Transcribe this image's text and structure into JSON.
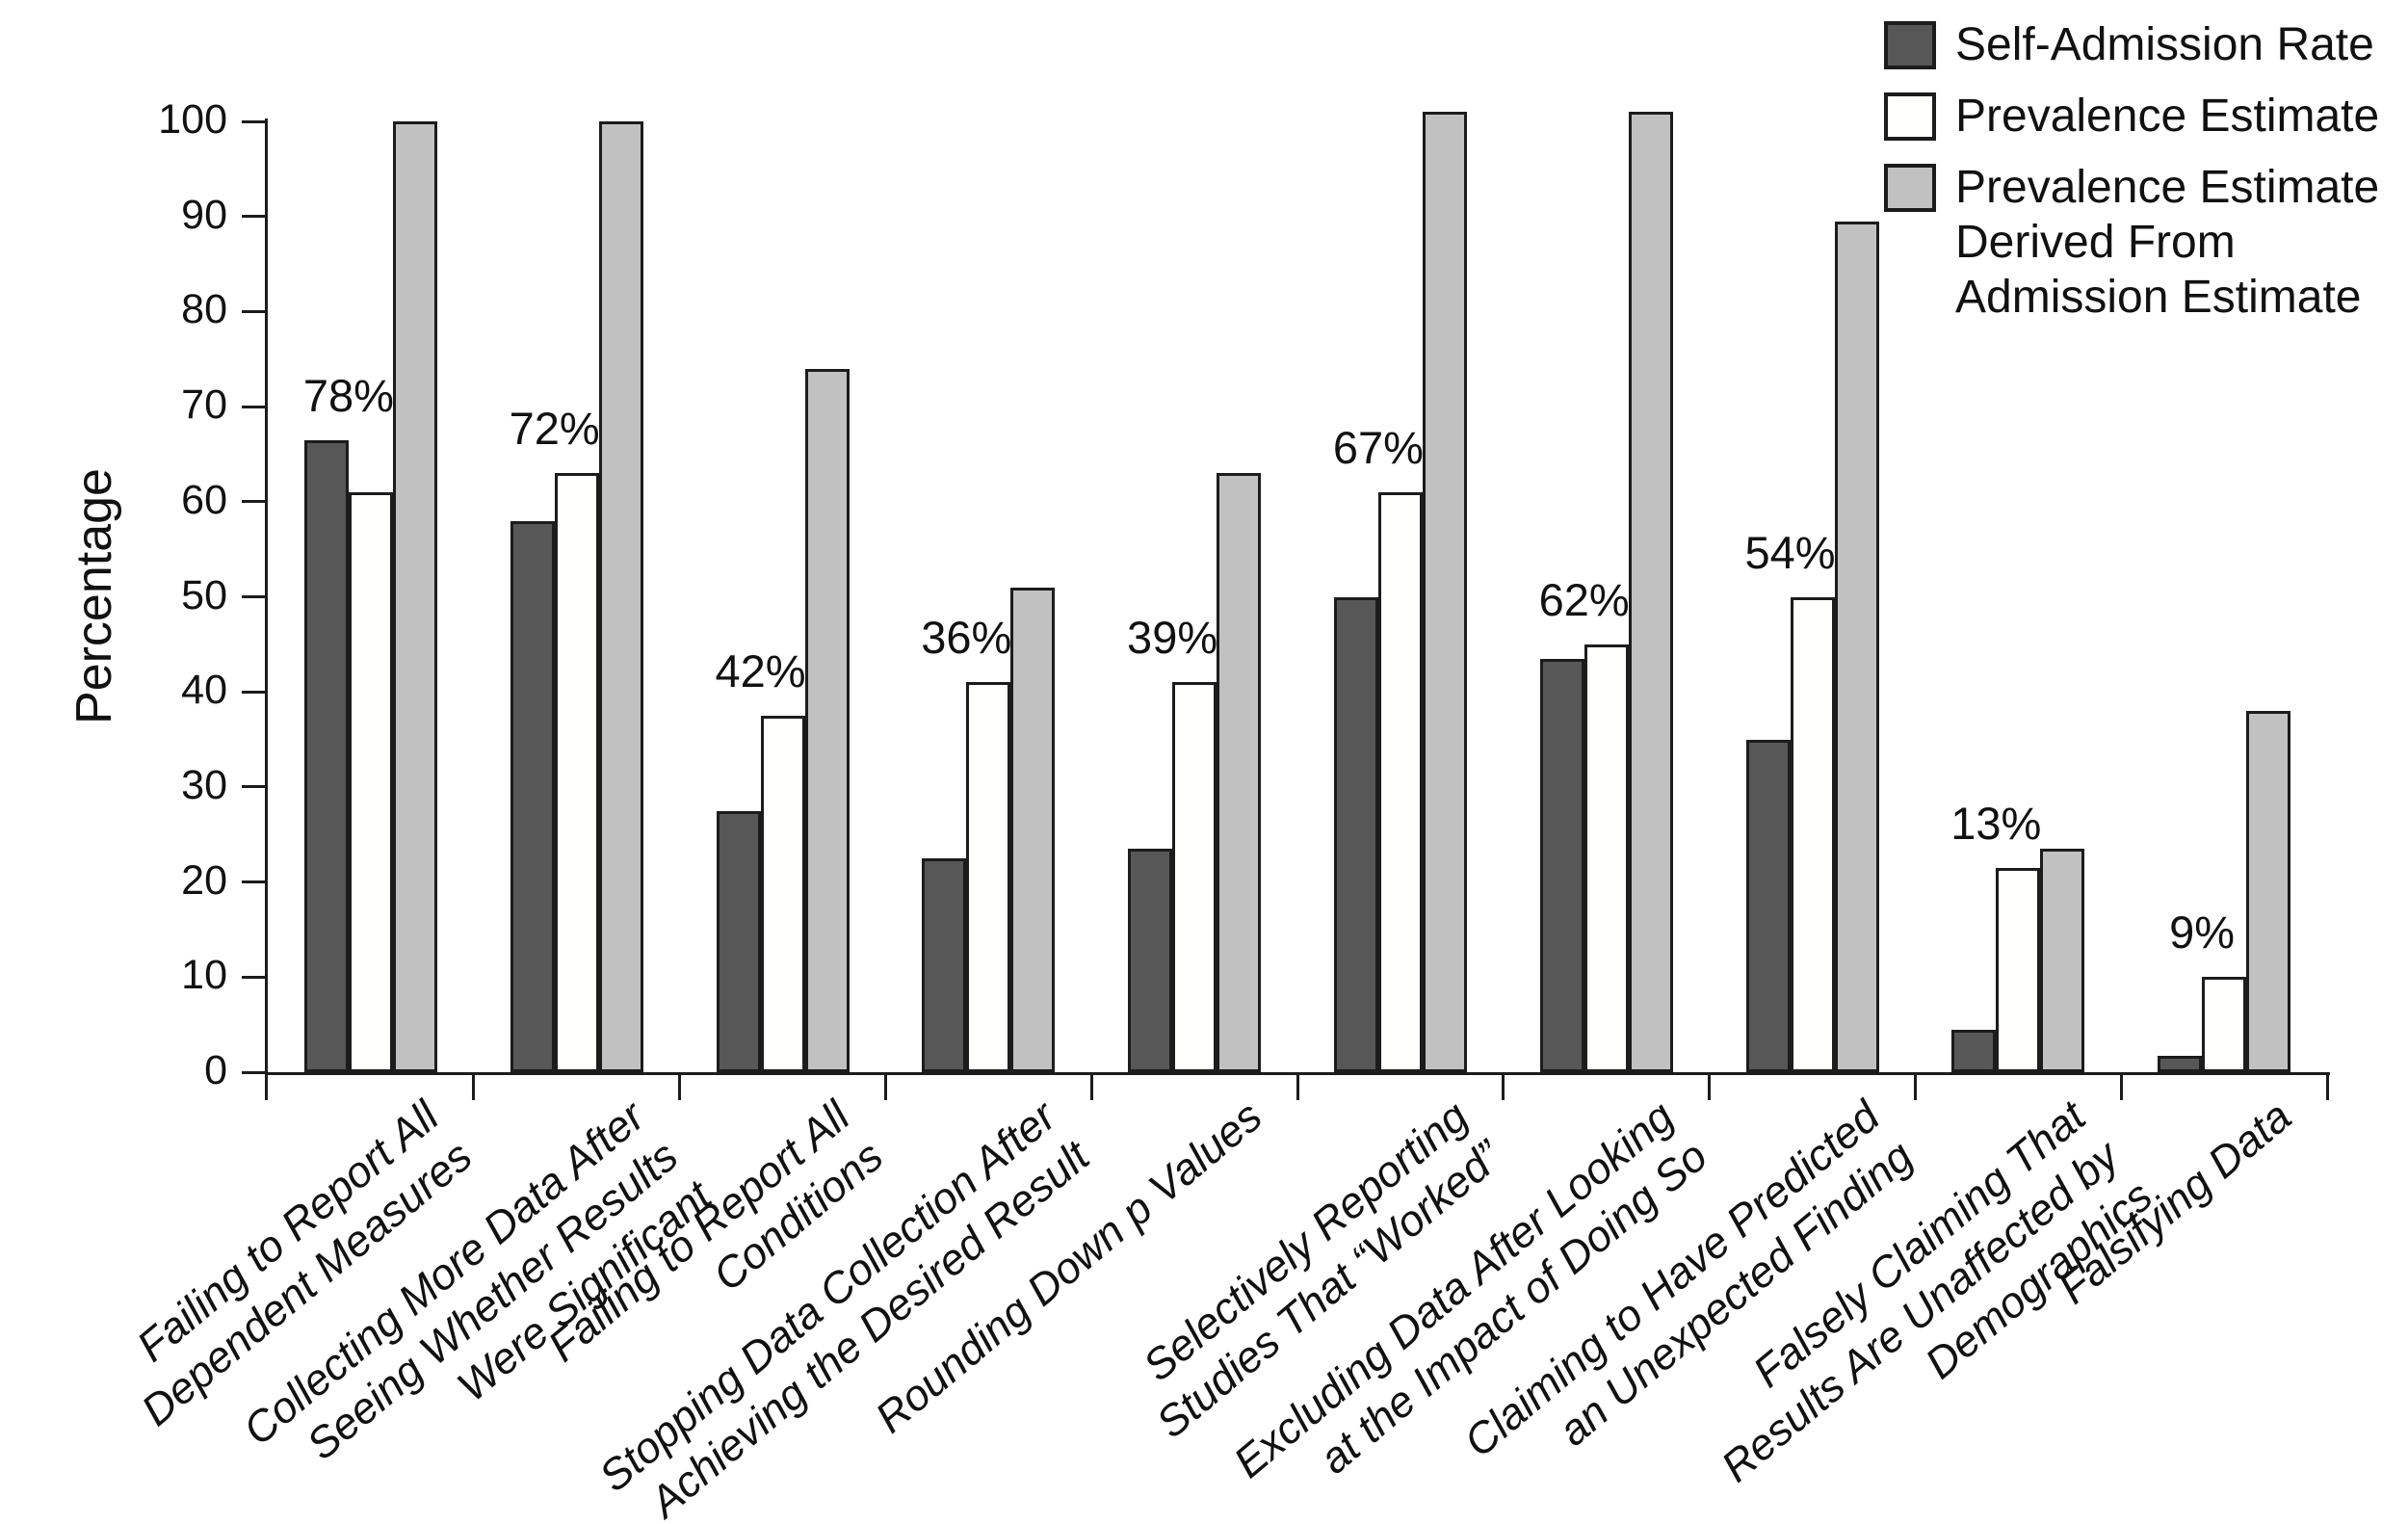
{
  "figure": {
    "ylabel": "Percentage",
    "legend": [
      {
        "label": "Self-Admission Rate",
        "color": "#575757"
      },
      {
        "label": "Prevalence Estimate",
        "color": "#FFFFFE"
      },
      {
        "label": "Prevalence Estimate\nDerived From\nAdmission Estimate",
        "color": "#C1C1C1"
      }
    ]
  },
  "chart_data": {
    "type": "bar",
    "title": "",
    "xlabel": "",
    "ylabel": "Percentage",
    "ylim": [
      0,
      100
    ],
    "yticks": [
      0,
      10,
      20,
      30,
      40,
      50,
      60,
      70,
      80,
      90,
      100
    ],
    "grid": false,
    "legend_position": "top-right",
    "categories": [
      "Failing to Report All\nDependent Measures",
      "Collecting More Data After\nSeeing Whether Results\nWere Significant",
      "Failing to Report All\nConditions",
      "Stopping Data Collection After\nAchieving the Desired Result",
      "Rounding Down p Values",
      "Selectively Reporting\nStudies That “Worked”",
      "Excluding Data After Looking\nat the Impact of Doing So",
      "Claiming to Have Predicted\nan Unexpected Finding",
      "Falsely Claiming That\nResults Are Unaffected by\nDemographics",
      "Falsifying Data"
    ],
    "series": [
      {
        "name": "Self-Admission Rate",
        "color": "#575757",
        "values": [
          66.5,
          58,
          27.5,
          22.5,
          23.5,
          50,
          43.5,
          35,
          4.5,
          1.7
        ]
      },
      {
        "name": "Prevalence Estimate",
        "color": "#FFFFFE",
        "values": [
          61,
          63,
          37.5,
          41,
          41,
          61,
          45,
          50,
          21.5,
          10
        ]
      },
      {
        "name": "Prevalence Estimate Derived From Admission Estimate",
        "color": "#C1C1C1",
        "values": [
          100,
          100,
          74,
          51,
          63,
          101,
          101,
          89.5,
          23.5,
          38
        ]
      }
    ],
    "value_labels": [
      "78%",
      "72%",
      "42%",
      "36%",
      "39%",
      "67%",
      "62%",
      "54%",
      "13%",
      "9%"
    ]
  }
}
